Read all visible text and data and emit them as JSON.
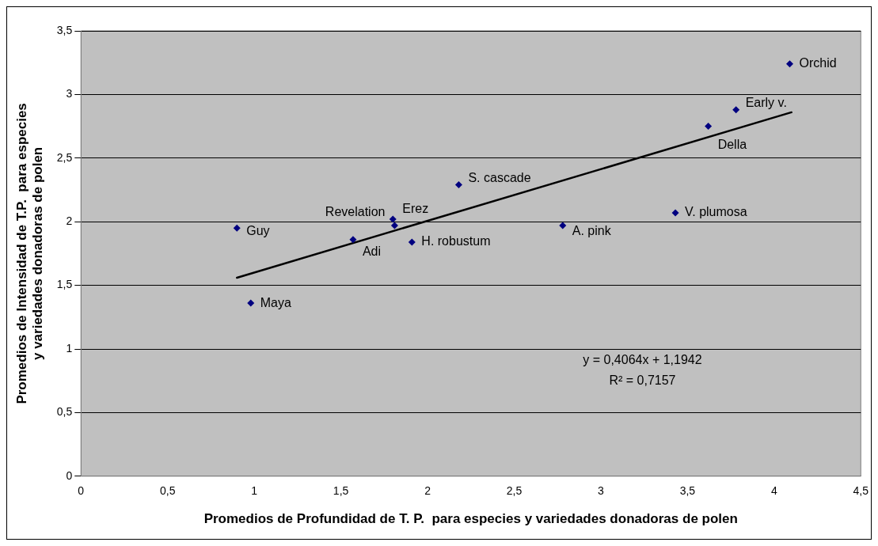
{
  "chart_data": {
    "type": "scatter",
    "xlabel": "Promedios de Profundidad de T. P.  para especies y variedades donadoras de polen",
    "ylabel": "Promedios de Intensidad de T.P.  para especies\ny variedades donadoras de polen",
    "series": [
      {
        "type": "scatter",
        "color": "#000080",
        "marker": "diamond",
        "x": [
          0.9,
          0.98,
          1.57,
          1.8,
          1.81,
          1.91,
          2.18,
          2.78,
          3.43,
          3.62,
          3.78,
          4.09
        ],
        "values": [
          1.95,
          1.36,
          1.86,
          2.02,
          1.97,
          1.84,
          2.29,
          1.97,
          2.07,
          2.75,
          2.88,
          3.24
        ]
      },
      {
        "type": "line",
        "color": "#000000",
        "marker": "none",
        "line_style": "solid",
        "x": [
          0.9,
          4.1
        ],
        "values": [
          1.56,
          2.86
        ]
      }
    ],
    "annotations": [
      {
        "text": "Guy",
        "x": 0.9,
        "y": 1.95
      },
      {
        "text": "Maya",
        "x": 0.98,
        "y": 1.36
      },
      {
        "text": "Adi",
        "x": 1.57,
        "y": 1.86
      },
      {
        "text": "Erez",
        "x": 1.8,
        "y": 2.02
      },
      {
        "text": "Revelation",
        "x": 1.81,
        "y": 1.97
      },
      {
        "text": "H. robustum",
        "x": 1.91,
        "y": 1.84
      },
      {
        "text": "S. cascade",
        "x": 2.18,
        "y": 2.29
      },
      {
        "text": "A. pink",
        "x": 2.78,
        "y": 1.97
      },
      {
        "text": "V. plumosa",
        "x": 3.43,
        "y": 2.07
      },
      {
        "text": "Della",
        "x": 3.62,
        "y": 2.75
      },
      {
        "text": "Early v.",
        "x": 3.78,
        "y": 2.88
      },
      {
        "text": "Orchid",
        "x": 4.09,
        "y": 3.24
      },
      "y = 0,4064x + 1,1942",
      "R² = 0,7157"
    ],
    "xlim": [
      0,
      4.5
    ],
    "xticks": [
      0,
      {
        "value": 0.5,
        "label": "0,5"
      },
      1,
      {
        "value": 1.5,
        "label": "1,5"
      },
      2,
      {
        "value": 2.5,
        "label": "2,5"
      },
      3,
      {
        "value": 3.5,
        "label": "3,5"
      },
      4,
      {
        "value": 4.5,
        "label": "4,5"
      }
    ],
    "ylim": [
      0,
      3.5
    ],
    "yticks": [
      0,
      {
        "value": 0.5,
        "label": "0,5"
      },
      1,
      {
        "value": 1.5,
        "label": "1,5"
      },
      2,
      {
        "value": 2.5,
        "label": "2,5"
      },
      3,
      {
        "value": 3.5,
        "label": "3,5"
      }
    ],
    "grid": "y",
    "legend": false
  }
}
